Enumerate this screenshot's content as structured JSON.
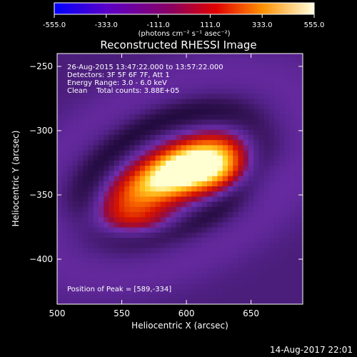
{
  "chart_data": {
    "type": "heatmap",
    "title": "Reconstructed RHESSI Image",
    "xlabel": "Heliocentric X (arcsec)",
    "ylabel": "Heliocentric Y (arcsec)",
    "xlim": [
      500,
      690
    ],
    "ylim": [
      -435,
      -240
    ],
    "x_ticks": [
      500,
      550,
      600,
      650
    ],
    "y_ticks": [
      -250,
      -300,
      -350,
      -400
    ],
    "colorbar": {
      "ticks": [
        "-555.0",
        "-333.0",
        "-111.0",
        "111.0",
        "333.0",
        "555.0"
      ],
      "min": -555.0,
      "max": 555.0,
      "unit": "(photons cm⁻² s⁻¹ asec⁻²)"
    },
    "info_lines": [
      "26-Aug-2015 13:47:22.000 to 13:57:22.000",
      "Detectors: 3F 5F 6F 7F, Att 1",
      "Energy Range: 3.0 - 6.0 keV",
      "Clean    Total counts: 3.88E+05"
    ],
    "peak_text": "Position of Peak = [589,-334]",
    "peak": [
      589,
      -334
    ],
    "timestamp": "14-Aug-2017 22:01"
  }
}
